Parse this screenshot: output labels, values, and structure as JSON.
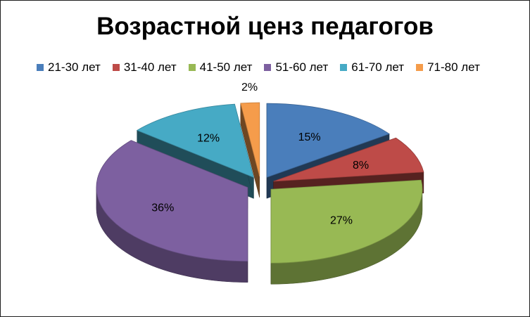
{
  "chart_data": {
    "type": "pie",
    "title": "Возрастной ценз педагогов",
    "legend_position": "top",
    "categories": [
      "21-30 лет",
      "31-40 лет",
      "41-50 лет",
      "51-60 лет",
      "61-70 лет",
      "71-80 лет"
    ],
    "values": [
      15,
      8,
      27,
      36,
      12,
      2
    ],
    "data_labels": [
      "15%",
      "8%",
      "27%",
      "36%",
      "12%",
      "2%"
    ],
    "colors": [
      "#4a7ebb",
      "#be4b48",
      "#98b954",
      "#7d60a0",
      "#46aac5",
      "#f59c4b"
    ],
    "style": "3d-exploded"
  }
}
